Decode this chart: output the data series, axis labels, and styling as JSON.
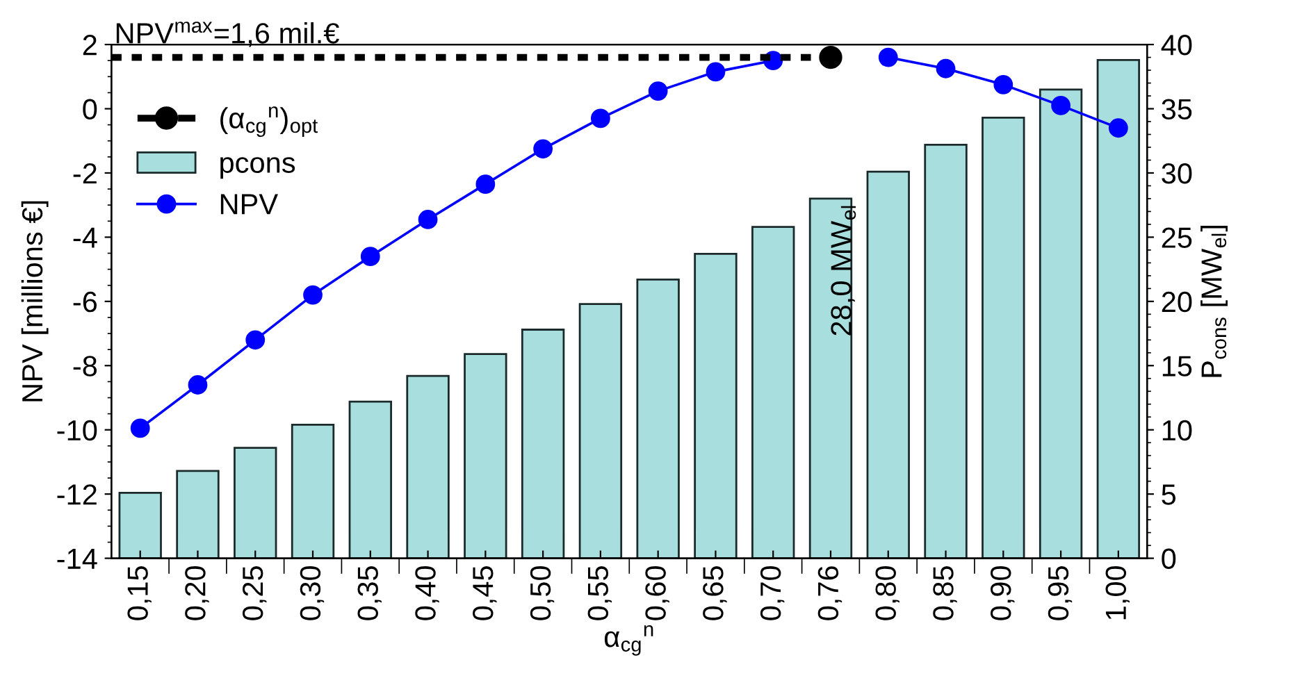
{
  "chart_data": {
    "type": "bar",
    "categories": [
      "0,15",
      "0,20",
      "0,25",
      "0,30",
      "0,35",
      "0,40",
      "0,45",
      "0,50",
      "0,55",
      "0,60",
      "0,65",
      "0,70",
      "0,76",
      "0,80",
      "0,85",
      "0,90",
      "0,95",
      "1,00"
    ],
    "xlabel": "α$_{cg}$$^{n}$",
    "ylabel": "NPV [millions €]",
    "y2label": "P$_{cons}$ [MW$_{el}$]",
    "series": [
      {
        "name": "pcons",
        "axis": "y2",
        "color": "#a9dede",
        "values": [
          5.1,
          6.8,
          8.6,
          10.4,
          12.2,
          14.2,
          15.9,
          17.8,
          19.8,
          21.7,
          23.7,
          25.8,
          28.0,
          30.1,
          32.2,
          34.3,
          36.5,
          38.8
        ]
      },
      {
        "name": "NPV",
        "type": "line",
        "axis": "y",
        "color": "#0000ff",
        "marker": "circle",
        "line_style": "solid",
        "values": [
          -9.95,
          -8.6,
          -7.2,
          -5.8,
          -4.6,
          -3.45,
          -2.35,
          -1.25,
          -0.3,
          0.55,
          1.15,
          1.5,
          null,
          1.6,
          1.25,
          0.75,
          0.1,
          -0.6
        ]
      },
      {
        "name": "(α$_{cg}$$^{n}$)$_{opt}$",
        "type": "scatter",
        "axis": "y",
        "color": "#000000",
        "marker": "circle",
        "line_style": "dashed",
        "x": [
          "0,76"
        ],
        "values": [
          1.6
        ]
      }
    ],
    "ref_lines": [
      {
        "axis": "y",
        "value": 1.6,
        "label": "NPV$^{max}$=1,6 mil.€",
        "color": "#000000",
        "line_style": "dotted"
      }
    ],
    "annotations": [
      "28,0 MW$_{el}$"
    ],
    "ylim": [
      -14,
      2
    ],
    "yticks": [
      -14,
      -12,
      -10,
      -8,
      -6,
      -4,
      -2,
      0,
      2
    ],
    "y2lim": [
      0,
      40
    ],
    "y2ticks": [
      0,
      5,
      10,
      15,
      20,
      25,
      30,
      35,
      40
    ],
    "legend": "top left",
    "grid": false
  }
}
